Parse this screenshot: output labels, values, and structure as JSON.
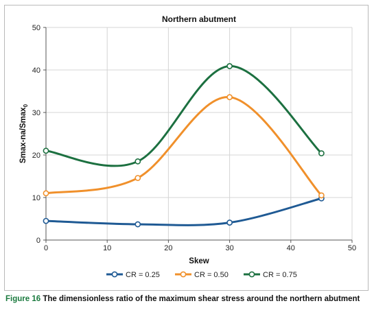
{
  "chart_data": {
    "type": "line",
    "title": "Northern abutment",
    "xlabel": "Skew",
    "ylabel": "Smax-na/Smax",
    "ylabel_subscript": "0",
    "xlim": [
      0,
      50
    ],
    "ylim": [
      0,
      50
    ],
    "xticks": [
      "0",
      "10",
      "20",
      "30",
      "40",
      "50"
    ],
    "yticks": [
      "0",
      "10",
      "20",
      "30",
      "40",
      "50"
    ],
    "grid": true,
    "legend_position": "bottom",
    "x": [
      0,
      15,
      30,
      45
    ],
    "series": [
      {
        "name": "CR = 0.25",
        "color": "#1f5a94",
        "values": [
          4.5,
          3.7,
          4.1,
          9.8
        ]
      },
      {
        "name": "CR = 0.50",
        "color": "#f0902b",
        "values": [
          11.0,
          14.6,
          33.6,
          10.5
        ]
      },
      {
        "name": "CR = 0.75",
        "color": "#1c7040",
        "values": [
          21.0,
          18.5,
          40.9,
          20.4
        ]
      }
    ]
  },
  "caption": {
    "label": "Figure 16",
    "text": "The dimensionless ratio of the maximum shear stress around the northern abutment"
  }
}
